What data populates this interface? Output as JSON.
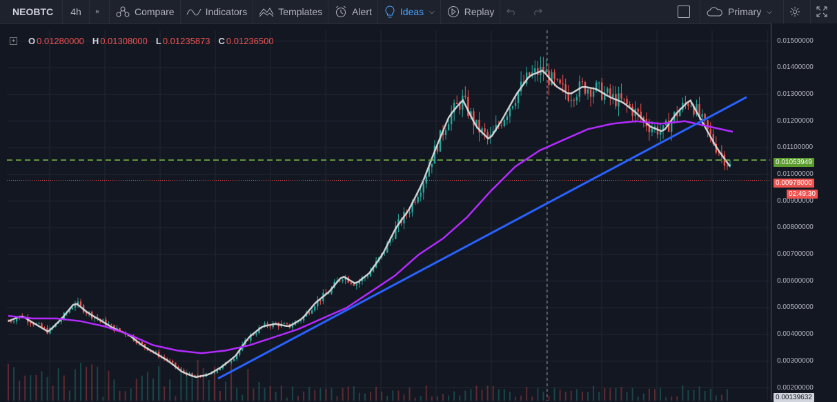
{
  "toolbar": {
    "symbol": "NEOBTC",
    "interval": "4h",
    "compare": "Compare",
    "indicators": "Indicators",
    "templates": "Templates",
    "alert": "Alert",
    "ideas": "Ideas",
    "replay": "Replay",
    "layout": "Primary"
  },
  "legend": {
    "o_label": "O",
    "o": "0.01280000",
    "h_label": "H",
    "h": "0.01308000",
    "l_label": "L",
    "l": "0.01235873",
    "c_label": "C",
    "c": "0.01236500"
  },
  "price_axis": {
    "ticks": [
      "0.01500000",
      "0.01400000",
      "0.01300000",
      "0.01200000",
      "0.01100000",
      "0.01000000",
      "0.00900000",
      "0.00800000",
      "0.00700000",
      "0.00600000",
      "0.00500000",
      "0.00400000",
      "0.00300000",
      "0.00200000"
    ],
    "badges": {
      "level": "0.01053949",
      "last": "0.00978000",
      "countdown": "02:49:30",
      "volume": "0.00139632"
    }
  },
  "colors": {
    "background": "#131722",
    "trendline": "#2962ff",
    "ma_purple": "#b42bff",
    "ma_white": "#e0e0e0",
    "up": "#26a69a",
    "down": "#ef5350",
    "level_green": "#7cc043",
    "last_red": "#ef5350"
  },
  "chart_data": {
    "type": "candlestick-line",
    "symbol": "NEOBTC",
    "timeframe": "4h",
    "ylim": [
      0.0016,
      0.0153
    ],
    "close_path": [
      0.0045,
      0.0047,
      0.0044,
      0.0041,
      0.0046,
      0.0052,
      0.0048,
      0.0045,
      0.0042,
      0.004,
      0.0036,
      0.0033,
      0.003,
      0.0026,
      0.0024,
      0.0025,
      0.0028,
      0.0032,
      0.0039,
      0.0043,
      0.0044,
      0.0043,
      0.0046,
      0.0052,
      0.0056,
      0.0062,
      0.0059,
      0.0063,
      0.007,
      0.008,
      0.0087,
      0.0097,
      0.011,
      0.0122,
      0.0128,
      0.0118,
      0.0113,
      0.0121,
      0.013,
      0.0137,
      0.0139,
      0.0133,
      0.013,
      0.0133,
      0.0132,
      0.0129,
      0.0127,
      0.0123,
      0.0118,
      0.0116,
      0.0123,
      0.0128,
      0.0119,
      0.011,
      0.0103
    ],
    "ma_purple": [
      0.0047,
      0.0046,
      0.0046,
      0.0045,
      0.0043,
      0.004,
      0.0036,
      0.0034,
      0.0033,
      0.0034,
      0.0036,
      0.0039,
      0.0042,
      0.0046,
      0.005,
      0.0056,
      0.0062,
      0.007,
      0.0076,
      0.0084,
      0.0094,
      0.0103,
      0.0109,
      0.0113,
      0.0117,
      0.0119,
      0.012,
      0.0119,
      0.012,
      0.0118,
      0.0116
    ],
    "trendline": {
      "start": 0.00235,
      "end": 0.0129
    },
    "horizontal_levels": {
      "dashed_green": 0.01053949,
      "dotted_red": 0.00978
    }
  }
}
